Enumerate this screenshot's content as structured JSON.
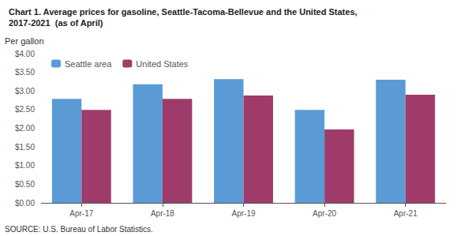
{
  "chart_data": {
    "type": "bar",
    "title": "Chart 1. Average prices for gasoline, Seattle-Tacoma-Bellevue and the United States,",
    "subtitle": "2017-2021  (as of April)",
    "ylabel": "Per gallon",
    "source": "SOURCE: U.S. Bureau of Labor Statistics.",
    "categories": [
      "Apr-17",
      "Apr-18",
      "Apr-19",
      "Apr-20",
      "Apr-21"
    ],
    "series": [
      {
        "name": "Seattle area",
        "color": "#5B9BD5",
        "values": [
          2.79,
          3.18,
          3.32,
          2.49,
          3.3
        ]
      },
      {
        "name": "United States",
        "color": "#9E3B6B",
        "values": [
          2.49,
          2.79,
          2.88,
          1.97,
          2.9
        ]
      }
    ],
    "ylim": [
      0,
      4.0
    ],
    "yticks": [
      {
        "value": 0.0,
        "label": "$0.00"
      },
      {
        "value": 0.5,
        "label": "$0.50"
      },
      {
        "value": 1.0,
        "label": "$1.00"
      },
      {
        "value": 1.5,
        "label": "$1.50"
      },
      {
        "value": 2.0,
        "label": "$2.00"
      },
      {
        "value": 2.5,
        "label": "$2.50"
      },
      {
        "value": 3.0,
        "label": "$3.00"
      },
      {
        "value": 3.5,
        "label": "$3.50"
      },
      {
        "value": 4.0,
        "label": "$4.00"
      }
    ],
    "grid": false,
    "legend": "upper left"
  }
}
